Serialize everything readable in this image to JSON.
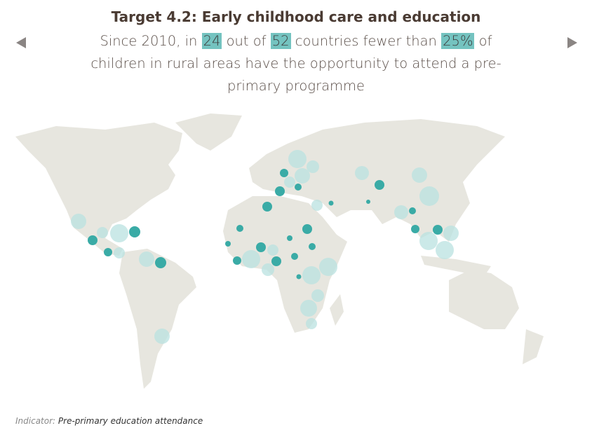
{
  "title": "Target 4.2: Early childhood care and education",
  "subtitle": {
    "parts": [
      "Since 2010, in ",
      "24",
      " out of ",
      "52",
      " countries fewer than ",
      "25%",
      " of children in rural areas have the opportunity to attend a pre-primary programme"
    ]
  },
  "footer": {
    "label": "Indicator:",
    "text": "Pre-primary education attendance"
  }
}
